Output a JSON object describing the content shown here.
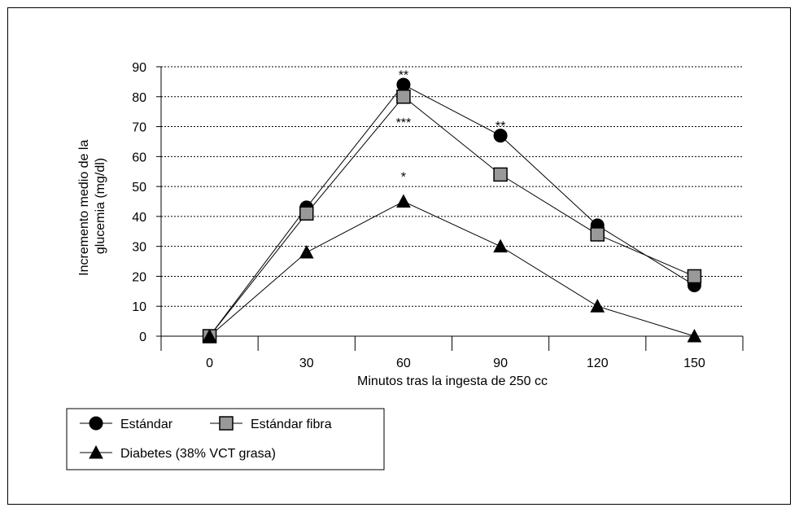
{
  "chart_data": {
    "type": "line",
    "xlabel": "Minutos tras la ingesta de 250 cc",
    "ylabel_lines": [
      "Incremento medio de la",
      "glucemia (mg/dl)"
    ],
    "categories": [
      "0",
      "30",
      "60",
      "90",
      "120",
      "150"
    ],
    "yticks": [
      "0",
      "10",
      "20",
      "30",
      "40",
      "50",
      "60",
      "70",
      "80",
      "90"
    ],
    "ylim": [
      0,
      90
    ],
    "grid": "horizontal dotted",
    "series": [
      {
        "name": "Estándar",
        "marker": "circle",
        "values": [
          0,
          43,
          84,
          67,
          37,
          17
        ]
      },
      {
        "name": "Estándar fibra",
        "marker": "square",
        "values": [
          0,
          41,
          80,
          54,
          34,
          20
        ]
      },
      {
        "name": "Diabetes (38% VCT grasa)",
        "marker": "triangle",
        "values": [
          0,
          28,
          45,
          30,
          10,
          0
        ]
      }
    ],
    "annotations": [
      {
        "text": "**",
        "x": "60",
        "y": 88
      },
      {
        "text": "***",
        "x": "60",
        "y": 72
      },
      {
        "text": "*",
        "x": "60",
        "y": 54
      },
      {
        "text": "**",
        "x": "90",
        "y": 71
      }
    ],
    "legend_position": "bottom-left",
    "colors": {
      "square_fill": "#999999",
      "line": "#000000"
    }
  }
}
